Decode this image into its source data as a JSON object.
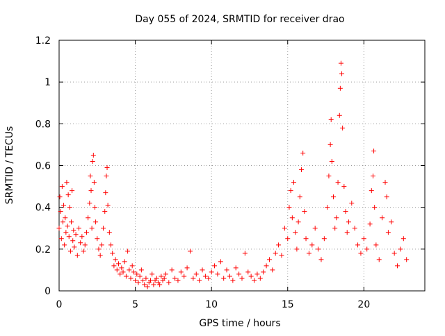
{
  "chart_data": {
    "type": "scatter",
    "title": "Day 055 of 2024, SRMTID for receiver drao",
    "xlabel": "GPS time / hours",
    "ylabel": "SRMTID / TECUs",
    "xlim": [
      0,
      24
    ],
    "ylim": [
      0,
      1.2
    ],
    "x_ticks": [
      0,
      5,
      10,
      15,
      20
    ],
    "x_tick_labels": [
      "0",
      "5",
      "10",
      "15",
      "20"
    ],
    "y_ticks": [
      0,
      0.2,
      0.4,
      0.6,
      0.8,
      1.0,
      1.2
    ],
    "y_tick_labels": [
      "0",
      "0.2",
      "0.4",
      "0.6",
      "0.8",
      "1",
      "1.2"
    ],
    "grid": true,
    "marker": "+",
    "marker_color": "#ff0000",
    "x_data_range": [
      0,
      22.8
    ],
    "series": [
      {
        "name": "SRMTID",
        "points": [
          [
            0.0,
            0.3
          ],
          [
            0.05,
            0.45
          ],
          [
            0.1,
            0.38
          ],
          [
            0.15,
            0.25
          ],
          [
            0.2,
            0.5
          ],
          [
            0.25,
            0.33
          ],
          [
            0.3,
            0.41
          ],
          [
            0.35,
            0.22
          ],
          [
            0.4,
            0.35
          ],
          [
            0.45,
            0.28
          ],
          [
            0.5,
            0.52
          ],
          [
            0.55,
            0.31
          ],
          [
            0.6,
            0.46
          ],
          [
            0.65,
            0.26
          ],
          [
            0.7,
            0.4
          ],
          [
            0.75,
            0.19
          ],
          [
            0.8,
            0.33
          ],
          [
            0.85,
            0.48
          ],
          [
            0.9,
            0.24
          ],
          [
            0.95,
            0.29
          ],
          [
            1.0,
            0.21
          ],
          [
            1.1,
            0.27
          ],
          [
            1.2,
            0.17
          ],
          [
            1.3,
            0.3
          ],
          [
            1.4,
            0.23
          ],
          [
            1.5,
            0.26
          ],
          [
            1.6,
            0.19
          ],
          [
            1.7,
            0.22
          ],
          [
            1.8,
            0.28
          ],
          [
            1.9,
            0.35
          ],
          [
            2.0,
            0.42
          ],
          [
            2.05,
            0.55
          ],
          [
            2.1,
            0.48
          ],
          [
            2.15,
            0.3
          ],
          [
            2.2,
            0.62
          ],
          [
            2.25,
            0.65
          ],
          [
            2.3,
            0.52
          ],
          [
            2.35,
            0.4
          ],
          [
            2.4,
            0.33
          ],
          [
            2.5,
            0.25
          ],
          [
            2.6,
            0.2
          ],
          [
            2.7,
            0.17
          ],
          [
            2.8,
            0.22
          ],
          [
            2.9,
            0.3
          ],
          [
            3.0,
            0.38
          ],
          [
            3.05,
            0.47
          ],
          [
            3.1,
            0.55
          ],
          [
            3.15,
            0.59
          ],
          [
            3.2,
            0.41
          ],
          [
            3.3,
            0.28
          ],
          [
            3.4,
            0.22
          ],
          [
            3.5,
            0.18
          ],
          [
            3.6,
            0.12
          ],
          [
            3.7,
            0.15
          ],
          [
            3.8,
            0.1
          ],
          [
            3.9,
            0.13
          ],
          [
            4.0,
            0.08
          ],
          [
            4.1,
            0.11
          ],
          [
            4.2,
            0.09
          ],
          [
            4.3,
            0.14
          ],
          [
            4.4,
            0.07
          ],
          [
            4.5,
            0.19
          ],
          [
            4.6,
            0.1
          ],
          [
            4.7,
            0.06
          ],
          [
            4.8,
            0.12
          ],
          [
            4.9,
            0.09
          ],
          [
            5.0,
            0.05
          ],
          [
            5.1,
            0.08
          ],
          [
            5.2,
            0.04
          ],
          [
            5.3,
            0.07
          ],
          [
            5.4,
            0.1
          ],
          [
            5.5,
            0.05
          ],
          [
            5.6,
            0.03
          ],
          [
            5.7,
            0.06
          ],
          [
            5.8,
            0.02
          ],
          [
            5.9,
            0.04
          ],
          [
            6.0,
            0.05
          ],
          [
            6.1,
            0.08
          ],
          [
            6.2,
            0.03
          ],
          [
            6.3,
            0.05
          ],
          [
            6.4,
            0.06
          ],
          [
            6.5,
            0.04
          ],
          [
            6.6,
            0.03
          ],
          [
            6.7,
            0.07
          ],
          [
            6.8,
            0.05
          ],
          [
            6.9,
            0.06
          ],
          [
            7.0,
            0.08
          ],
          [
            7.2,
            0.04
          ],
          [
            7.4,
            0.1
          ],
          [
            7.6,
            0.06
          ],
          [
            7.8,
            0.05
          ],
          [
            8.0,
            0.09
          ],
          [
            8.2,
            0.07
          ],
          [
            8.4,
            0.11
          ],
          [
            8.6,
            0.19
          ],
          [
            8.8,
            0.06
          ],
          [
            9.0,
            0.08
          ],
          [
            9.2,
            0.05
          ],
          [
            9.4,
            0.1
          ],
          [
            9.6,
            0.07
          ],
          [
            9.8,
            0.06
          ],
          [
            10.0,
            0.09
          ],
          [
            10.2,
            0.12
          ],
          [
            10.4,
            0.08
          ],
          [
            10.6,
            0.14
          ],
          [
            10.8,
            0.06
          ],
          [
            11.0,
            0.1
          ],
          [
            11.2,
            0.07
          ],
          [
            11.4,
            0.05
          ],
          [
            11.6,
            0.11
          ],
          [
            11.8,
            0.08
          ],
          [
            12.0,
            0.06
          ],
          [
            12.2,
            0.18
          ],
          [
            12.4,
            0.09
          ],
          [
            12.6,
            0.07
          ],
          [
            12.8,
            0.05
          ],
          [
            13.0,
            0.08
          ],
          [
            13.2,
            0.06
          ],
          [
            13.4,
            0.09
          ],
          [
            13.6,
            0.12
          ],
          [
            13.8,
            0.15
          ],
          [
            14.0,
            0.1
          ],
          [
            14.2,
            0.18
          ],
          [
            14.4,
            0.22
          ],
          [
            14.6,
            0.17
          ],
          [
            14.8,
            0.3
          ],
          [
            15.0,
            0.25
          ],
          [
            15.1,
            0.4
          ],
          [
            15.2,
            0.48
          ],
          [
            15.3,
            0.35
          ],
          [
            15.4,
            0.52
          ],
          [
            15.5,
            0.28
          ],
          [
            15.6,
            0.2
          ],
          [
            15.7,
            0.33
          ],
          [
            15.8,
            0.45
          ],
          [
            15.9,
            0.58
          ],
          [
            16.0,
            0.66
          ],
          [
            16.1,
            0.38
          ],
          [
            16.2,
            0.25
          ],
          [
            16.4,
            0.18
          ],
          [
            16.6,
            0.22
          ],
          [
            16.8,
            0.3
          ],
          [
            17.0,
            0.2
          ],
          [
            17.2,
            0.15
          ],
          [
            17.4,
            0.25
          ],
          [
            17.6,
            0.4
          ],
          [
            17.7,
            0.55
          ],
          [
            17.8,
            0.7
          ],
          [
            17.85,
            0.82
          ],
          [
            17.9,
            0.62
          ],
          [
            18.0,
            0.45
          ],
          [
            18.1,
            0.3
          ],
          [
            18.2,
            0.35
          ],
          [
            18.3,
            0.52
          ],
          [
            18.4,
            0.84
          ],
          [
            18.45,
            0.97
          ],
          [
            18.5,
            1.09
          ],
          [
            18.55,
            1.04
          ],
          [
            18.6,
            0.78
          ],
          [
            18.7,
            0.5
          ],
          [
            18.8,
            0.38
          ],
          [
            18.9,
            0.28
          ],
          [
            19.0,
            0.33
          ],
          [
            19.2,
            0.42
          ],
          [
            19.4,
            0.3
          ],
          [
            19.6,
            0.22
          ],
          [
            19.8,
            0.18
          ],
          [
            20.0,
            0.25
          ],
          [
            20.2,
            0.2
          ],
          [
            20.4,
            0.32
          ],
          [
            20.5,
            0.48
          ],
          [
            20.6,
            0.55
          ],
          [
            20.65,
            0.67
          ],
          [
            20.7,
            0.4
          ],
          [
            20.8,
            0.22
          ],
          [
            21.0,
            0.15
          ],
          [
            21.2,
            0.35
          ],
          [
            21.4,
            0.52
          ],
          [
            21.5,
            0.45
          ],
          [
            21.6,
            0.28
          ],
          [
            21.8,
            0.33
          ],
          [
            22.0,
            0.18
          ],
          [
            22.2,
            0.12
          ],
          [
            22.4,
            0.2
          ],
          [
            22.6,
            0.25
          ],
          [
            22.8,
            0.15
          ]
        ]
      }
    ]
  }
}
